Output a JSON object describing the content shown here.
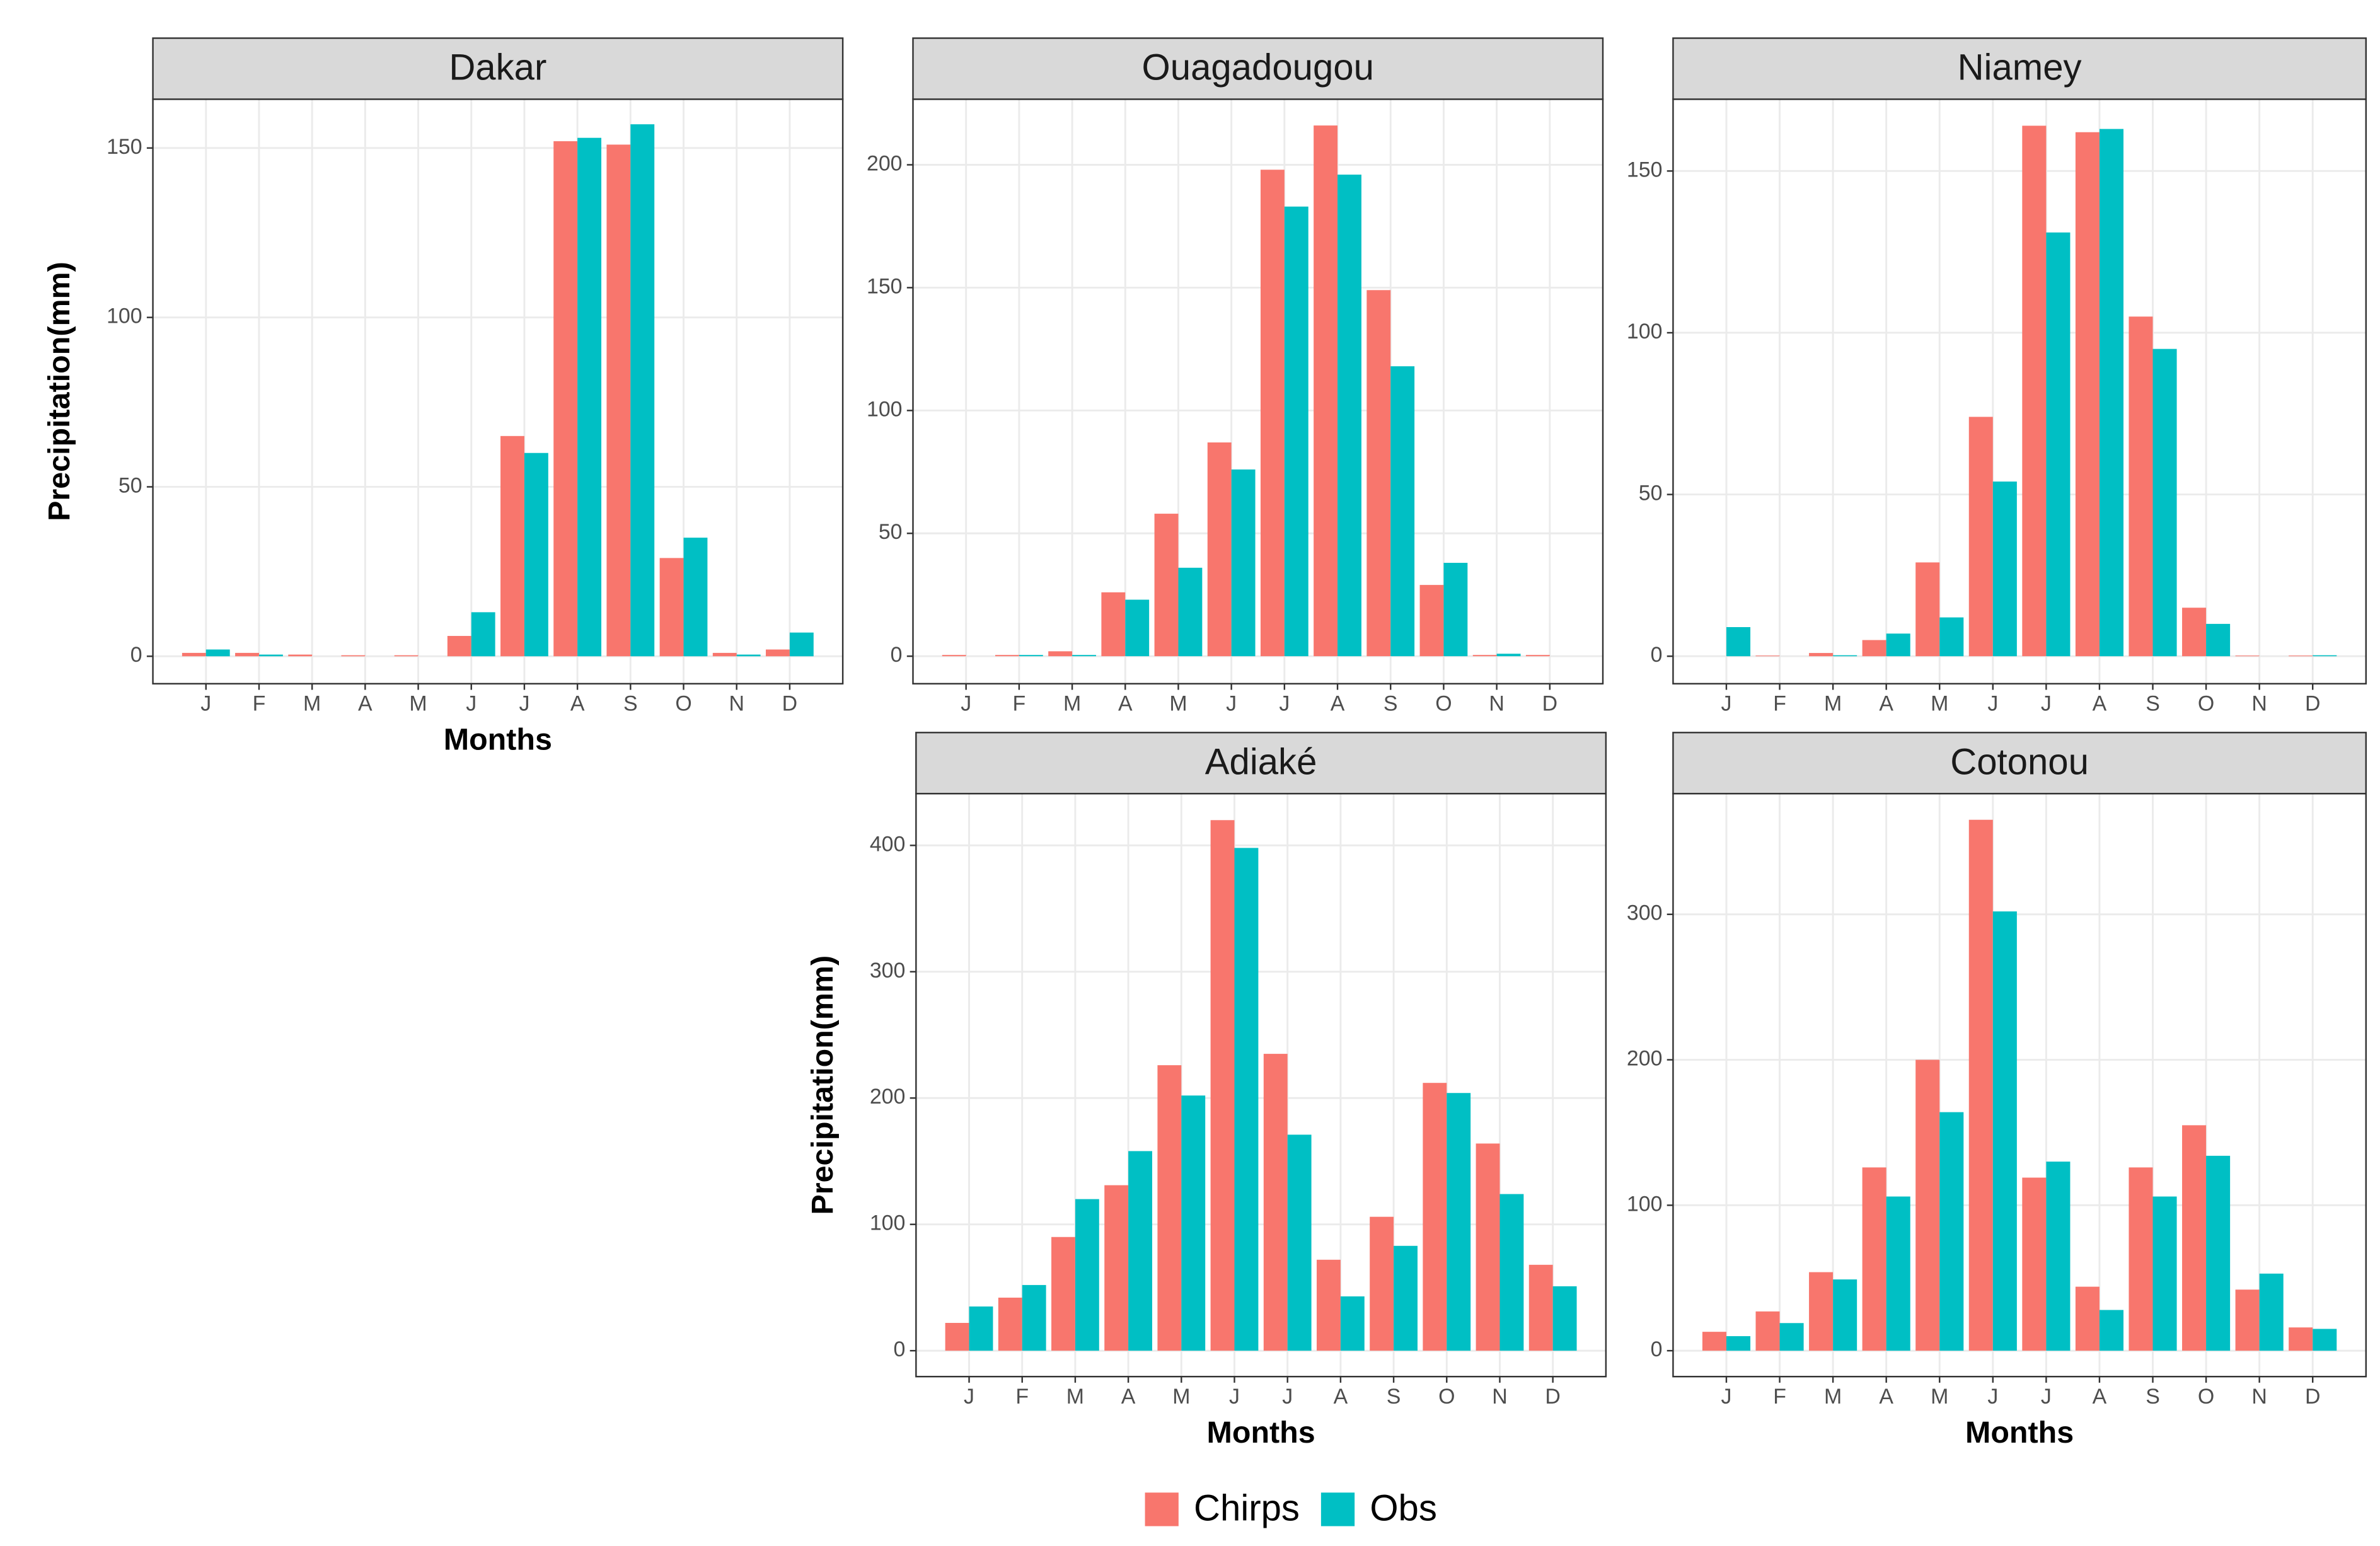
{
  "chart_data": [
    {
      "type": "bar",
      "title": "Dakar",
      "y_label": "Precipitation(mm)",
      "x_label": "Months",
      "categories": [
        "J",
        "F",
        "M",
        "A",
        "M",
        "J",
        "J",
        "A",
        "S",
        "O",
        "N",
        "D"
      ],
      "series": [
        {
          "name": "Chirps",
          "color": "#f8766d",
          "values": [
            1,
            1,
            0.5,
            0.3,
            0.3,
            6,
            65,
            152,
            151,
            29,
            1,
            2
          ]
        },
        {
          "name": "Obs",
          "color": "#00bfc4",
          "values": [
            2,
            0.5,
            0,
            0,
            0,
            13,
            60,
            153,
            157,
            35,
            0.5,
            7
          ]
        }
      ],
      "ylim": [
        -8.1,
        164.4
      ],
      "yticks": [
        0,
        50,
        100,
        150
      ],
      "grid": true
    },
    {
      "type": "bar",
      "title": "Ouagadougou",
      "categories": [
        "J",
        "F",
        "M",
        "A",
        "M",
        "J",
        "J",
        "A",
        "S",
        "O",
        "N",
        "D"
      ],
      "series": [
        {
          "color": "#f8766d",
          "values": [
            0.5,
            0.5,
            2,
            26,
            58,
            87,
            198,
            216,
            149,
            29,
            0.5,
            0.5
          ]
        },
        {
          "color": "#00bfc4",
          "values": [
            0,
            0.5,
            0.5,
            23,
            36,
            76,
            183,
            196,
            118,
            38,
            1,
            0
          ]
        }
      ],
      "ylim": [
        -11.2,
        226.7
      ],
      "yticks": [
        0,
        50,
        100,
        150,
        200
      ],
      "grid": true
    },
    {
      "type": "bar",
      "title": "Niamey",
      "categories": [
        "J",
        "F",
        "M",
        "A",
        "M",
        "J",
        "J",
        "A",
        "S",
        "O",
        "N",
        "D"
      ],
      "series": [
        {
          "color": "#f8766d",
          "values": [
            0,
            0.2,
            1,
            5,
            29,
            74,
            164,
            162,
            105,
            15,
            0.2,
            0.2
          ]
        },
        {
          "color": "#00bfc4",
          "values": [
            9,
            0,
            0.3,
            7,
            12,
            54,
            131,
            163,
            95,
            10,
            0,
            0.3
          ]
        }
      ],
      "ylim": [
        -8.5,
        172.2
      ],
      "yticks": [
        0,
        50,
        100,
        150
      ],
      "grid": true
    },
    {
      "type": "bar",
      "title": "Adiaké",
      "y_label": "Precipitation(mm)",
      "x_label": "Months",
      "categories": [
        "J",
        "F",
        "M",
        "A",
        "M",
        "J",
        "J",
        "A",
        "S",
        "O",
        "N",
        "D"
      ],
      "series": [
        {
          "color": "#f8766d",
          "values": [
            22,
            42,
            90,
            131,
            226,
            420,
            235,
            72,
            106,
            212,
            164,
            68
          ]
        },
        {
          "color": "#00bfc4",
          "values": [
            35,
            52,
            120,
            158,
            202,
            398,
            171,
            43,
            83,
            204,
            124,
            51
          ]
        }
      ],
      "ylim": [
        -20.5,
        441
      ],
      "yticks": [
        0,
        100,
        200,
        300,
        400
      ],
      "grid": true
    },
    {
      "type": "bar",
      "title": "Cotonou",
      "x_label": "Months",
      "categories": [
        "J",
        "F",
        "M",
        "A",
        "M",
        "J",
        "J",
        "A",
        "S",
        "O",
        "N",
        "D"
      ],
      "series": [
        {
          "color": "#f8766d",
          "values": [
            13,
            27,
            54,
            126,
            200,
            365,
            119,
            44,
            126,
            155,
            42,
            16
          ]
        },
        {
          "color": "#00bfc4",
          "values": [
            10,
            19,
            49,
            106,
            164,
            302,
            130,
            28,
            106,
            134,
            53,
            15
          ]
        }
      ],
      "ylim": [
        -17.8,
        383
      ],
      "yticks": [
        0,
        100,
        200,
        300
      ],
      "grid": true
    }
  ]
}
